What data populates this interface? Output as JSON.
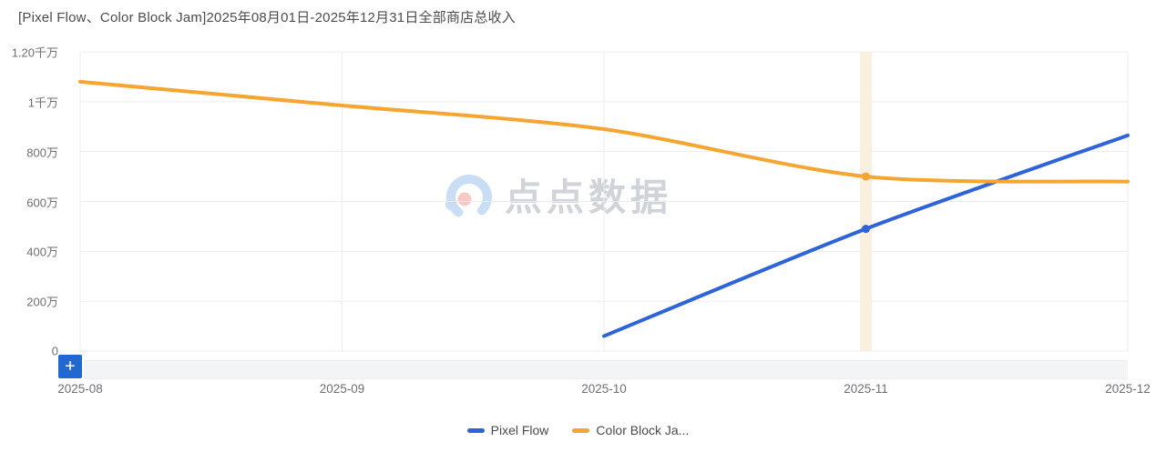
{
  "title": "[Pixel Flow、Color Block Jam]2025年08月01日-2025年12月31日全部商店总收入",
  "watermark": {
    "brand": "点点数据"
  },
  "toolbar": {
    "add_button_label": "+",
    "add_button_color": "#2368d0"
  },
  "colors": {
    "pixel_flow_blue": "#2e63d9",
    "color_block_orange": "#f5a632",
    "highlight_band": "#faf0e0",
    "gridline": "#ededf1"
  },
  "legend": {
    "position": "bottom-center",
    "items": [
      {
        "label": "Pixel Flow",
        "color": "#2e63d9"
      },
      {
        "label": "Color Block Ja...",
        "color": "#f5a632"
      }
    ]
  },
  "chart_data": {
    "type": "line",
    "title": "[Pixel Flow、Color Block Jam]2025年08月01日-2025年12月31日全部商店总收入",
    "unit": "万",
    "categories": [
      "2025-08",
      "2025-09",
      "2025-10",
      "2025-11",
      "2025-12"
    ],
    "series": [
      {
        "name": "Pixel Flow",
        "color": "#2e63d9",
        "values": [
          null,
          null,
          60,
          490,
          865
        ]
      },
      {
        "name": "Color Block Jam",
        "color": "#f5a632",
        "values": [
          1080,
          985,
          890,
          700,
          680
        ]
      }
    ],
    "ylim": [
      0,
      1200
    ],
    "ytick_values": [
      0,
      200,
      400,
      600,
      800,
      1000,
      1200
    ],
    "ytick_labels": [
      "0",
      "200万",
      "400万",
      "600万",
      "800万",
      "1千万",
      "1.20千万"
    ],
    "xlabel": "",
    "ylabel": "",
    "grid": true,
    "legend_position": "bottom",
    "highlight_category": "2025-11",
    "highlight_color": "#faf0e0",
    "marked_points": [
      {
        "series": "Pixel Flow",
        "category": "2025-11",
        "value": 490
      },
      {
        "series": "Color Block Jam",
        "category": "2025-11",
        "value": 700
      }
    ]
  }
}
